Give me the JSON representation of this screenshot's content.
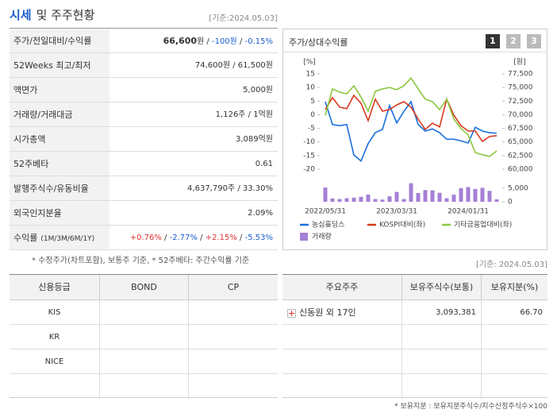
{
  "header": {
    "title": [
      "시세",
      "및 주주현황"
    ],
    "date": "[기준:2024.05.03]"
  },
  "summary": {
    "rows": [
      {
        "label": "주가/전일대비/수익률",
        "value": [
          {
            "text": "66,600",
            "bold": true
          },
          {
            "text": "원 / "
          },
          {
            "text": "-100원",
            "color": "#1a5fcc"
          },
          {
            "text": " / "
          },
          {
            "text": "-0.15%",
            "color": "#1a5fcc"
          }
        ]
      },
      {
        "label": "52Weeks 최고/최저",
        "value": [
          {
            "text": "74,600원 / 61,500원"
          }
        ]
      },
      {
        "label": "액면가",
        "value": [
          {
            "text": "5,000원"
          }
        ]
      },
      {
        "label": "거래량/거래대금",
        "value": [
          {
            "text": "1,126주 / 1억원"
          }
        ]
      },
      {
        "label": "시가총액",
        "value": [
          {
            "text": "3,089억원"
          }
        ]
      },
      {
        "label": "52주베타",
        "value": [
          {
            "text": "0.61"
          }
        ]
      },
      {
        "label": "발행주식수/유동비율",
        "value": [
          {
            "text": "4,637,790주 / 33.30%"
          }
        ]
      },
      {
        "label": "외국인지분율",
        "value": [
          {
            "text": "2.09%"
          }
        ]
      },
      {
        "label": "수익률",
        "label_note": "(1M/3M/6M/1Y)",
        "value": [
          {
            "text": "+0.76%",
            "color": "#e03030"
          },
          {
            "text": " / "
          },
          {
            "text": "-2.77%",
            "color": "#1a5fcc"
          },
          {
            "text": " / "
          },
          {
            "text": "+2.15%",
            "color": "#e03030"
          },
          {
            "text": " / "
          },
          {
            "text": "-5.53%",
            "color": "#1a5fcc"
          }
        ]
      }
    ],
    "note": "* 수정주가(차트포함), 보통주 기준, * 52주베타: 주간수익률 기준"
  },
  "chart_panel": {
    "title": "주가/상대수익률",
    "tabs": [
      "1",
      "2",
      "3"
    ]
  },
  "chart_data": {
    "type": "line",
    "x": [
      "2022/05/31",
      null,
      null,
      null,
      null,
      null,
      null,
      null,
      null,
      null,
      "2023/03/31",
      null,
      null,
      null,
      null,
      null,
      null,
      null,
      null,
      null,
      "2024/01/31",
      null,
      null,
      null,
      null
    ],
    "y_unit": "[%]",
    "y2_unit": "[원]",
    "ylim": [
      -20,
      15
    ],
    "yticks": [
      15,
      10,
      5,
      0,
      -5,
      -10,
      -15,
      -20
    ],
    "y2lim": [
      60000,
      77500
    ],
    "y2ticks": [
      {
        "value": 77500,
        "label": "77,500"
      },
      {
        "value": 75000,
        "label": "75,000"
      },
      {
        "value": 72500,
        "label": "72,500"
      },
      {
        "value": 70000,
        "label": "70,000"
      },
      {
        "value": 67500,
        "label": "67,500"
      },
      {
        "value": 65000,
        "label": "65,000"
      },
      {
        "value": 62500,
        "label": "62,500"
      },
      {
        "value": 60000,
        "label": "60,000"
      }
    ],
    "volume_lim": [
      0,
      7000
    ],
    "volume_ticks": [
      {
        "value": 5000,
        "label": "5,000"
      },
      0
    ],
    "series": [
      {
        "name": "농심홀딩스",
        "color": "#1a6fdc",
        "axis": "y2",
        "values": [
          72400,
          68200,
          68000,
          68200,
          62600,
          61500,
          64700,
          66700,
          67300,
          71700,
          68500,
          70600,
          72400,
          68200,
          67000,
          67400,
          66700,
          65500,
          65500,
          65200,
          64800,
          67700,
          67000,
          66700,
          66600
        ]
      },
      {
        "name": "KOSPI대비(좌)",
        "color": "#d9381e",
        "values": [
          1.9,
          6.3,
          2.8,
          2.2,
          7.1,
          4.2,
          -2.2,
          5.7,
          1.3,
          1.9,
          3.6,
          4.8,
          2.8,
          -1.6,
          -5.4,
          -3.1,
          -4.5,
          5.7,
          -0.2,
          -4.0,
          -6.0,
          -6.0,
          -9.8,
          -8.0,
          -7.7
        ]
      },
      {
        "name": "기타금융업대비(좌)",
        "color": "#8cc63f",
        "values": [
          -0.2,
          9.5,
          8.3,
          7.7,
          10.6,
          6.5,
          1.3,
          8.6,
          9.5,
          10.0,
          9.2,
          10.6,
          13.5,
          9.5,
          5.7,
          4.8,
          1.9,
          5.7,
          -1.6,
          -5.1,
          -7.4,
          -13.9,
          -14.7,
          -15.3,
          -13.3
        ]
      },
      {
        "name": "거래량",
        "color": "#a57fd6",
        "type": "bar",
        "axis": "volume",
        "values": [
          5200,
          1200,
          1000,
          1300,
          1500,
          1800,
          2600,
          1000,
          800,
          2000,
          3600,
          1000,
          6800,
          3200,
          4300,
          4200,
          3300,
          1300,
          2600,
          5000,
          5400,
          4700,
          5100,
          4000,
          900
        ]
      }
    ]
  },
  "credit": {
    "headers": [
      "신용등급",
      "BOND",
      "CP"
    ],
    "rows": [
      [
        "KIS"
      ],
      [
        "KR"
      ],
      [
        "NICE"
      ],
      []
    ]
  },
  "holders": {
    "date": "[기준: 2024.05.03]",
    "headers": [
      "주요주주",
      "보유주식수(보통)",
      "보유지분(%)"
    ],
    "rows": [
      [
        "신동원 외 17인",
        "3,093,381",
        "66.70"
      ]
    ],
    "note": "* 보유지분 : 보유지분주식수/지수산정주식수×100"
  }
}
